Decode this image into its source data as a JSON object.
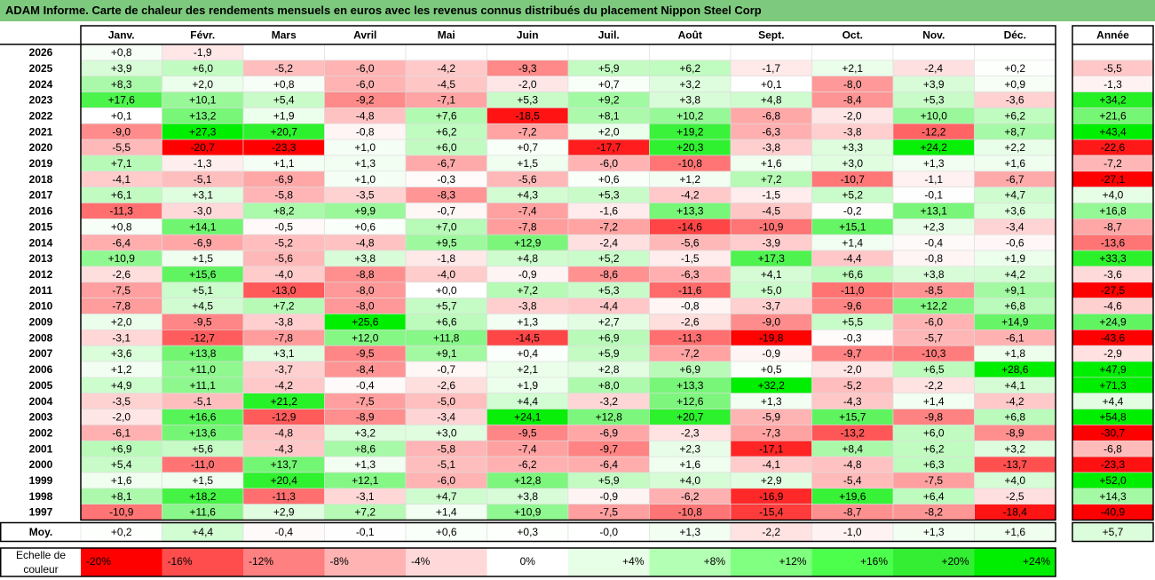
{
  "title": "ADAM Informe. Carte de chaleur des rendements mensuels en euros avec les revenus connus distribués du placement Nippon Steel Corp",
  "colors": {
    "title_bg": "#7dc97d",
    "scale": [
      "#ff0000",
      "#ff4d4d",
      "#ff8080",
      "#ffb3b3",
      "#ffd9d9",
      "#ffffff",
      "#e6ffe6",
      "#b3ffb3",
      "#80ff80",
      "#4dff4d",
      "#33ee33",
      "#00ee00"
    ]
  },
  "chart_data": {
    "type": "heatmap",
    "title": "ADAM Informe. Carte de chaleur des rendements mensuels en euros avec les revenus connus distribués du placement Nippon Steel Corp",
    "months": [
      "Janv.",
      "Févr.",
      "Mars",
      "Avril",
      "Mai",
      "Juin",
      "Juil.",
      "Août",
      "Sept.",
      "Oct.",
      "Nov.",
      "Déc."
    ],
    "year_header": "Année",
    "rows": [
      {
        "year": "2026",
        "values": [
          "+0,8",
          "-1,9",
          "",
          "",
          "",
          "",
          "",
          "",
          "",
          "",
          "",
          ""
        ],
        "annual": ""
      },
      {
        "year": "2025",
        "values": [
          "+3,9",
          "+6,0",
          "-5,2",
          "-6,0",
          "-4,2",
          "-9,3",
          "+5,9",
          "+6,2",
          "-1,7",
          "+2,1",
          "-2,4",
          "+0,2"
        ],
        "annual": "-5,5"
      },
      {
        "year": "2024",
        "values": [
          "+8,3",
          "+2,0",
          "+0,8",
          "-6,0",
          "-4,5",
          "-2,0",
          "+0,7",
          "+3,2",
          "+0,1",
          "-8,0",
          "+3,9",
          "+0,9"
        ],
        "annual": "-1,3"
      },
      {
        "year": "2023",
        "values": [
          "+17,6",
          "+10,1",
          "+5,4",
          "-9,2",
          "-7,1",
          "+5,3",
          "+9,2",
          "+3,8",
          "+4,8",
          "-8,4",
          "+5,3",
          "-3,6"
        ],
        "annual": "+34,2"
      },
      {
        "year": "2022",
        "values": [
          "+0,1",
          "+13,2",
          "+1,9",
          "-4,8",
          "+7,6",
          "-18,5",
          "+8,1",
          "+10,2",
          "-6,8",
          "-2,0",
          "+10,0",
          "+6,2"
        ],
        "annual": "+21,6"
      },
      {
        "year": "2021",
        "values": [
          "-9,0",
          "+27,3",
          "+20,7",
          "-0,8",
          "+6,2",
          "-7,2",
          "+2,0",
          "+19,2",
          "-6,3",
          "-3,8",
          "-12,2",
          "+8,7"
        ],
        "annual": "+43,4"
      },
      {
        "year": "2020",
        "values": [
          "-5,5",
          "-20,7",
          "-23,3",
          "+1,0",
          "+6,0",
          "+0,7",
          "-17,7",
          "+20,3",
          "-3,8",
          "+3,3",
          "+24,2",
          "+2,2"
        ],
        "annual": "-22,6"
      },
      {
        "year": "2019",
        "values": [
          "+7,1",
          "-1,3",
          "+1,1",
          "+1,3",
          "-6,7",
          "+1,5",
          "-6,0",
          "-10,8",
          "+1,6",
          "+3,0",
          "+1,3",
          "+1,6"
        ],
        "annual": "-7,2"
      },
      {
        "year": "2018",
        "values": [
          "-4,1",
          "-5,1",
          "-6,9",
          "+1,0",
          "-0,3",
          "-5,6",
          "+0,6",
          "+1,2",
          "+7,2",
          "-10,7",
          "-1,1",
          "-6,7"
        ],
        "annual": "-27,1"
      },
      {
        "year": "2017",
        "values": [
          "+6,1",
          "+3,1",
          "-5,8",
          "-3,5",
          "-8,3",
          "+4,3",
          "+5,3",
          "-4,2",
          "-1,5",
          "+5,2",
          "-0,1",
          "+4,7"
        ],
        "annual": "+4,0"
      },
      {
        "year": "2016",
        "values": [
          "-11,3",
          "-3,0",
          "+8,2",
          "+9,9",
          "-0,7",
          "-7,4",
          "-1,6",
          "+13,3",
          "-4,5",
          "-0,2",
          "+13,1",
          "+3,6"
        ],
        "annual": "+16,8"
      },
      {
        "year": "2015",
        "values": [
          "+0,8",
          "+14,1",
          "-0,5",
          "+0,6",
          "+7,0",
          "-7,8",
          "-7,2",
          "-14,6",
          "-10,9",
          "+15,1",
          "+2,3",
          "-3,4"
        ],
        "annual": "-8,7"
      },
      {
        "year": "2014",
        "values": [
          "-6,4",
          "-6,9",
          "-5,2",
          "-4,8",
          "+9,5",
          "+12,9",
          "-2,4",
          "-5,6",
          "-3,9",
          "+1,4",
          "-0,4",
          "-0,6"
        ],
        "annual": "-13,6"
      },
      {
        "year": "2013",
        "values": [
          "+10,9",
          "+1,5",
          "-5,6",
          "+3,8",
          "-1,8",
          "+4,8",
          "+5,2",
          "-1,5",
          "+17,3",
          "-4,4",
          "-0,8",
          "+1,9"
        ],
        "annual": "+33,3"
      },
      {
        "year": "2012",
        "values": [
          "-2,6",
          "+15,6",
          "-4,0",
          "-8,8",
          "-4,0",
          "-0,9",
          "-8,6",
          "-6,3",
          "+4,1",
          "+6,6",
          "+3,8",
          "+4,2"
        ],
        "annual": "-3,6"
      },
      {
        "year": "2011",
        "values": [
          "-7,5",
          "+5,1",
          "-13,0",
          "-8,0",
          "+0,0",
          "+7,2",
          "+5,3",
          "-11,6",
          "+5,0",
          "-11,0",
          "-8,5",
          "+9,1"
        ],
        "annual": "-27,5"
      },
      {
        "year": "2010",
        "values": [
          "-7,8",
          "+4,5",
          "+7,2",
          "-8,0",
          "+5,7",
          "-3,8",
          "-4,4",
          "-0,8",
          "-3,7",
          "-9,6",
          "+12,2",
          "+6,8"
        ],
        "annual": "-4,6"
      },
      {
        "year": "2009",
        "values": [
          "+2,0",
          "-9,5",
          "-3,8",
          "+25,6",
          "+6,6",
          "+1,3",
          "+2,7",
          "-2,6",
          "-9,0",
          "+5,5",
          "-6,0",
          "+14,9"
        ],
        "annual": "+24,9"
      },
      {
        "year": "2008",
        "values": [
          "-3,1",
          "-12,7",
          "-7,8",
          "+12,0",
          "+11,8",
          "-14,5",
          "+6,9",
          "-11,3",
          "-19,8",
          "-0,3",
          "-5,7",
          "-6,1"
        ],
        "annual": "-43,6"
      },
      {
        "year": "2007",
        "values": [
          "+3,6",
          "+13,8",
          "+3,1",
          "-9,5",
          "+9,1",
          "+0,4",
          "+5,9",
          "-7,2",
          "-0,9",
          "-9,7",
          "-10,3",
          "+1,8"
        ],
        "annual": "-2,9"
      },
      {
        "year": "2006",
        "values": [
          "+1,2",
          "+11,0",
          "-3,7",
          "-8,4",
          "-0,7",
          "+2,1",
          "+2,8",
          "+6,9",
          "+0,5",
          "-2,0",
          "+6,5",
          "+28,6"
        ],
        "annual": "+47,9"
      },
      {
        "year": "2005",
        "values": [
          "+4,9",
          "+11,1",
          "-4,2",
          "-0,4",
          "-2,6",
          "+1,9",
          "+8,0",
          "+13,3",
          "+32,2",
          "-5,2",
          "-2,2",
          "+4,1"
        ],
        "annual": "+71,3"
      },
      {
        "year": "2004",
        "values": [
          "-3,5",
          "-5,1",
          "+21,2",
          "-7,5",
          "-5,0",
          "+4,4",
          "-3,2",
          "+12,6",
          "+1,3",
          "-4,3",
          "+1,4",
          "-4,2"
        ],
        "annual": "+4,4"
      },
      {
        "year": "2003",
        "values": [
          "-2,0",
          "+16,6",
          "-12,9",
          "-8,9",
          "-3,4",
          "+24,1",
          "+12,8",
          "+20,7",
          "-5,9",
          "+15,7",
          "-9,8",
          "+6,8"
        ],
        "annual": "+54,8"
      },
      {
        "year": "2002",
        "values": [
          "-6,1",
          "+13,6",
          "-4,8",
          "+3,2",
          "+3,0",
          "-9,5",
          "-6,9",
          "-2,3",
          "-7,3",
          "-13,2",
          "+6,0",
          "-8,9"
        ],
        "annual": "-30,7"
      },
      {
        "year": "2001",
        "values": [
          "+6,9",
          "+5,6",
          "-4,3",
          "+8,6",
          "-5,8",
          "-7,4",
          "-9,7",
          "+2,3",
          "-17,1",
          "+8,4",
          "+6,2",
          "+3,2"
        ],
        "annual": "-6,8"
      },
      {
        "year": "2000",
        "values": [
          "+5,4",
          "-11,0",
          "+13,7",
          "+1,3",
          "-5,1",
          "-6,2",
          "-6,4",
          "+1,6",
          "-4,1",
          "-4,8",
          "+6,3",
          "-13,7"
        ],
        "annual": "-23,3"
      },
      {
        "year": "1999",
        "values": [
          "+1,6",
          "+1,5",
          "+20,4",
          "+12,1",
          "-6,0",
          "+12,8",
          "+5,9",
          "+4,0",
          "+2,9",
          "-5,4",
          "-7,5",
          "+4,0"
        ],
        "annual": "+52,0"
      },
      {
        "year": "1998",
        "values": [
          "+8,1",
          "+18,2",
          "-11,3",
          "-3,1",
          "+4,7",
          "+3,8",
          "-0,9",
          "-6,2",
          "-16,9",
          "+19,6",
          "+6,4",
          "-2,5"
        ],
        "annual": "+14,3"
      },
      {
        "year": "1997",
        "values": [
          "-10,9",
          "+11,6",
          "+2,9",
          "+7,2",
          "+1,4",
          "+10,9",
          "-7,5",
          "-10,8",
          "-15,4",
          "-8,7",
          "-8,2",
          "-18,4"
        ],
        "annual": "-40,9"
      }
    ],
    "average": {
      "label": "Moy.",
      "values": [
        "+0,2",
        "+4,4",
        "-0,4",
        "-0,1",
        "+0,6",
        "+0,3",
        "-0,0",
        "+1,3",
        "-2,2",
        "-1,0",
        "+1,3",
        "+1,6"
      ],
      "annual": "+5,7"
    },
    "scale": {
      "label": "Echelle de couleur",
      "labels": [
        "-20%",
        "-16%",
        "-12%",
        "-8%",
        "-4%",
        "0%",
        "+4%",
        "+8%",
        "+12%",
        "+16%",
        "+20%",
        "+24%"
      ]
    }
  }
}
